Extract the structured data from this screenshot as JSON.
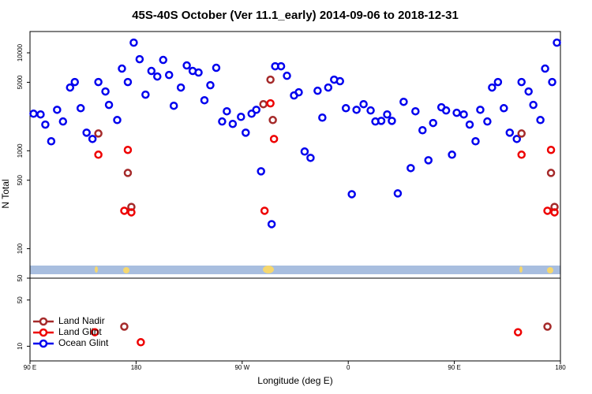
{
  "chart_data": [
    {
      "type": "scatter",
      "title": "45S-40S October (Ver 11.1_early)   2014-09-06 to 2018-12-31",
      "ylabel": "N Total",
      "log_y": true,
      "xlim": [
        90,
        540
      ],
      "ylim": [
        50,
        16500
      ],
      "yticks": [
        50,
        100,
        500,
        1000,
        5000,
        10000
      ],
      "series": [
        {
          "color": "#0000ee",
          "x": [
            93,
            99,
            103,
            108,
            113,
            118,
            124,
            128,
            133,
            138,
            143,
            148,
            154,
            157,
            164,
            168,
            173,
            178,
            183,
            188,
            193,
            198,
            203,
            208,
            212,
            218,
            223,
            228,
            233,
            238,
            243,
            248,
            253,
            257,
            262,
            269,
            273,
            278,
            282,
            286,
            295,
            298,
            303,
            308,
            314,
            318,
            323,
            328,
            334,
            338,
            343,
            348,
            353,
            358,
            363,
            367,
            373,
            379,
            383,
            388,
            393,
            397,
            402,
            407,
            413,
            417,
            423,
            428,
            432,
            439,
            443,
            448,
            452,
            458,
            463,
            468,
            472,
            478,
            482,
            487,
            492,
            497,
            503,
            507,
            513,
            517,
            523,
            527,
            533,
            537
          ],
          "values": [
            2390,
            2350,
            1850,
            1250,
            2620,
            1990,
            4420,
            5030,
            2720,
            1530,
            1320,
            5030,
            4030,
            2940,
            2060,
            6900,
            5030,
            12700,
            8610,
            3740,
            6530,
            5730,
            8460,
            5940,
            2880,
            4420,
            7430,
            6530,
            6290,
            3280,
            4670,
            7030,
            1990,
            2530,
            1880,
            2220,
            1530,
            2390,
            2620,
            617,
            178,
            7290,
            7290,
            5830,
            3670,
            3950,
            982,
            846,
            4100,
            2180,
            4420,
            5320,
            5130,
            2720,
            360,
            2620,
            2990,
            2580,
            1990,
            2020,
            2350,
            2020,
            367,
            3160,
            665,
            2530,
            1620,
            800,
            1920,
            2780,
            2580,
            912,
            2440,
            2350,
            1850,
            1250,
            2620,
            1990,
            4420,
            5030,
            2720,
            1530,
            1320,
            5030,
            4030,
            2940,
            2060,
            6900,
            5030,
            12700
          ]
        },
        {
          "color": "#a52a2a",
          "x": [
            148,
            173,
            176,
            288,
            294,
            296,
            507,
            532,
            535
          ],
          "values": [
            1500,
            594,
            267,
            2990,
            5320,
            2060,
            1500,
            594,
            267
          ]
        },
        {
          "color": "#ee0000",
          "x": [
            148,
            173,
            170,
            176,
            289,
            294,
            297,
            507,
            532,
            529,
            535
          ],
          "values": [
            912,
            1020,
            244,
            235,
            244,
            3050,
            1320,
            912,
            1020,
            244,
            235
          ]
        }
      ]
    },
    {
      "type": "scatter",
      "xlabel": "Longitude (deg E)",
      "log_y": true,
      "legend": "left",
      "xlim": [
        90,
        540
      ],
      "xticks": [
        {
          "value": 90,
          "label": "90 E"
        },
        180,
        {
          "value": 270,
          "label": "90 W"
        },
        {
          "value": 360,
          "label": "0"
        },
        {
          "value": 450,
          "label": "90 E"
        },
        {
          "value": 540,
          "label": "180"
        }
      ],
      "ylim": [
        6,
        107
      ],
      "yticks": [
        10,
        50
      ],
      "series": [
        {
          "name": "Land Nadir",
          "color": "#a52a2a",
          "x": [
            170,
            529
          ],
          "values": [
            19.8,
            19.8
          ]
        },
        {
          "name": "Land Glint",
          "color": "#ee0000",
          "x": [
            145,
            184,
            504
          ],
          "values": [
            16.3,
            11.5,
            16.3
          ]
        },
        {
          "name": "Ocean Glint",
          "color": "#0000ee",
          "x": [],
          "values": []
        }
      ]
    }
  ]
}
